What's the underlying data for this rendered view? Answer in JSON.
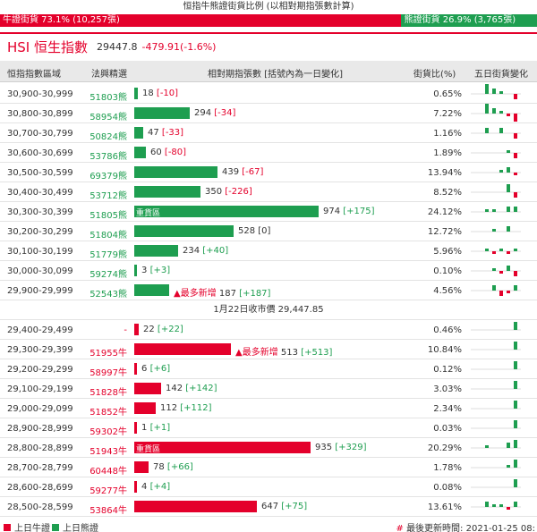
{
  "top": {
    "title": "恒指牛熊證街貨比例 (以相對期指張數計算)",
    "bull_label": "牛證街貨 73.1% (10,257張)",
    "bear_label": "熊證街貨 26.9% (3,765張)",
    "bull_fraction": 0.731
  },
  "hsi": {
    "name": "HSI 恒生指數",
    "value": "29447.8",
    "change": "-479.91(-1.6%)"
  },
  "header": {
    "range": "恒指指數區域",
    "hot": "法興精選",
    "futures": "相對期指張數 [括號內為一日變化]",
    "pct": "街貨比(%)",
    "fiveday": "五日街貨變化"
  },
  "mid_label": "1月22日收市價 29,447.85",
  "colors": {
    "bull": "#e4002b",
    "bear": "#1e9e50"
  },
  "bear_rows": [
    {
      "range": "30,900-30,999",
      "code": "51803熊",
      "value": 18,
      "value_text": "18",
      "change": "[-10]",
      "change_dir": "d",
      "pct": "0.65%",
      "spark": [
        2,
        1,
        0.5,
        0,
        -1
      ]
    },
    {
      "range": "30,800-30,899",
      "code": "58954熊",
      "value": 294,
      "value_text": "294",
      "change": "[-34]",
      "change_dir": "d",
      "pct": "7.22%",
      "spark": [
        2,
        1,
        0.5,
        -0.5,
        -1.5
      ]
    },
    {
      "range": "30,700-30,799",
      "code": "50824熊",
      "value": 47,
      "value_text": "47",
      "change": "[-33]",
      "change_dir": "d",
      "pct": "1.16%",
      "spark": [
        1,
        0,
        1,
        0,
        -1
      ]
    },
    {
      "range": "30,600-30,699",
      "code": "53786熊",
      "value": 60,
      "value_text": "60",
      "change": "[-80]",
      "change_dir": "d",
      "pct": "1.89%",
      "spark": [
        0,
        0,
        0,
        0.5,
        -1
      ]
    },
    {
      "range": "30,500-30,599",
      "code": "69379熊",
      "value": 439,
      "value_text": "439",
      "change": "[-67]",
      "change_dir": "d",
      "pct": "13.94%",
      "spark": [
        0,
        0,
        0.5,
        1,
        -0.5
      ]
    },
    {
      "range": "30,400-30,499",
      "code": "53712熊",
      "value": 350,
      "value_text": "350",
      "change": "[-226]",
      "change_dir": "d",
      "pct": "8.52%",
      "spark": [
        0,
        0,
        0,
        1.5,
        -1
      ]
    },
    {
      "range": "30,300-30,399",
      "code": "51805熊",
      "value": 974,
      "value_text": "974",
      "change": "[+175]",
      "change_dir": "u",
      "pct": "24.12%",
      "tag": "重貨區",
      "spark": [
        0.5,
        0.5,
        0,
        1,
        1
      ]
    },
    {
      "range": "30,200-30,299",
      "code": "51804熊",
      "value": 528,
      "value_text": "528",
      "change": "[0]",
      "change_dir": "z",
      "pct": "12.72%",
      "spark": [
        0,
        0.5,
        0,
        1,
        0
      ]
    },
    {
      "range": "30,100-30,199",
      "code": "51779熊",
      "value": 234,
      "value_text": "234",
      "change": "[+40]",
      "change_dir": "u",
      "pct": "5.96%",
      "spark": [
        0.5,
        -0.5,
        0.5,
        -0.5,
        0.5
      ]
    },
    {
      "range": "30,000-30,099",
      "code": "59274熊",
      "value": 3,
      "value_text": "3",
      "change": "[+3]",
      "change_dir": "u",
      "pct": "0.10%",
      "spark": [
        0,
        0.5,
        -0.5,
        1,
        -1
      ]
    },
    {
      "range": "29,900-29,999",
      "code": "52543熊",
      "value": 187,
      "value_text": "187",
      "change": "[+187]",
      "change_dir": "u",
      "pct": "4.56%",
      "most": "▲最多新增",
      "spark": [
        0,
        1,
        -1,
        -0.5,
        1
      ]
    }
  ],
  "bull_rows": [
    {
      "range": "29,400-29,499",
      "code": "-",
      "value": 22,
      "value_text": "22",
      "change": "[+22]",
      "change_dir": "u",
      "pct": "0.46%",
      "spark": [
        0,
        0,
        0,
        0,
        1.5
      ]
    },
    {
      "range": "29,300-29,399",
      "code": "51955牛",
      "value": 513,
      "value_text": "513",
      "change": "[+513]",
      "change_dir": "u",
      "pct": "10.84%",
      "most": "▲最多新增",
      "spark": [
        0,
        0,
        0,
        0,
        1.5
      ]
    },
    {
      "range": "29,200-29,299",
      "code": "58997牛",
      "value": 6,
      "value_text": "6",
      "change": "[+6]",
      "change_dir": "u",
      "pct": "0.12%",
      "spark": [
        0,
        0,
        0,
        0,
        1.5
      ]
    },
    {
      "range": "29,100-29,199",
      "code": "51828牛",
      "value": 142,
      "value_text": "142",
      "change": "[+142]",
      "change_dir": "u",
      "pct": "3.03%",
      "spark": [
        0,
        0,
        0,
        0,
        1.5
      ]
    },
    {
      "range": "29,000-29,099",
      "code": "51852牛",
      "value": 112,
      "value_text": "112",
      "change": "[+112]",
      "change_dir": "u",
      "pct": "2.34%",
      "spark": [
        0,
        0,
        0,
        0,
        1.5
      ]
    },
    {
      "range": "28,900-28,999",
      "code": "59302牛",
      "value": 1,
      "value_text": "1",
      "change": "[+1]",
      "change_dir": "u",
      "pct": "0.03%",
      "spark": [
        0,
        0,
        0,
        0,
        1.5
      ]
    },
    {
      "range": "28,800-28,899",
      "code": "51943牛",
      "value": 935,
      "value_text": "935",
      "change": "[+329]",
      "change_dir": "u",
      "pct": "20.29%",
      "tag": "重貨區",
      "spark": [
        0.5,
        0,
        0,
        1,
        1.5
      ]
    },
    {
      "range": "28,700-28,799",
      "code": "60448牛",
      "value": 78,
      "value_text": "78",
      "change": "[+66]",
      "change_dir": "u",
      "pct": "1.78%",
      "spark": [
        0,
        0,
        0,
        0.5,
        1.5
      ]
    },
    {
      "range": "28,600-28,699",
      "code": "59277牛",
      "value": 4,
      "value_text": "4",
      "change": "[+4]",
      "change_dir": "u",
      "pct": "0.08%",
      "spark": [
        0,
        0,
        0,
        0,
        1.5
      ]
    },
    {
      "range": "28,500-28,599",
      "code": "53864牛",
      "value": 647,
      "value_text": "647",
      "change": "[+75]",
      "change_dir": "u",
      "pct": "13.61%",
      "spark": [
        1,
        0.5,
        0.5,
        -0.5,
        1
      ]
    }
  ],
  "footer": {
    "bull_legend": "上日牛證",
    "bear_legend": "上日熊證",
    "hash": "#",
    "updated": "最後更新時間: 2021-01-25 08:"
  }
}
